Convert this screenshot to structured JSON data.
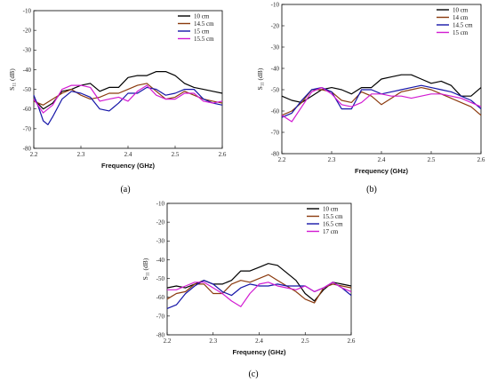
{
  "chart_data": [
    {
      "type": "line",
      "panel_label": "(a)",
      "xlabel": "Frequency (GHz)",
      "ylabel": "S11 (dB)",
      "ylabel_main": "S",
      "ylabel_sub": "11",
      "ylabel_unit": " (dB)",
      "xlim": [
        2.2,
        2.6
      ],
      "ylim": [
        -80,
        -10
      ],
      "xticks": [
        "2.2",
        "2.3",
        "2.4",
        "2.5",
        "2.6"
      ],
      "yticks": [
        "-80",
        "-70",
        "-60",
        "-50",
        "-40",
        "-30",
        "-20",
        "-10"
      ],
      "legend_position": "top-right",
      "series": [
        {
          "name": "10 cm",
          "color": "#000000",
          "x": [
            2.2,
            2.22,
            2.24,
            2.26,
            2.28,
            2.3,
            2.32,
            2.34,
            2.36,
            2.38,
            2.4,
            2.42,
            2.44,
            2.46,
            2.48,
            2.5,
            2.52,
            2.54,
            2.56,
            2.58,
            2.6
          ],
          "y": [
            -55,
            -60,
            -57,
            -51,
            -50,
            -48,
            -47,
            -51,
            -49,
            -49,
            -44,
            -43,
            -43,
            -41,
            -41,
            -43,
            -47,
            -49,
            -50,
            -51,
            -52
          ]
        },
        {
          "name": "14.5 cm",
          "color": "#8B3A0E",
          "x": [
            2.2,
            2.22,
            2.24,
            2.26,
            2.28,
            2.3,
            2.32,
            2.34,
            2.36,
            2.38,
            2.4,
            2.42,
            2.44,
            2.46,
            2.48,
            2.5,
            2.52,
            2.54,
            2.56,
            2.58,
            2.6
          ],
          "y": [
            -56,
            -58,
            -55,
            -52,
            -50,
            -53,
            -55,
            -54,
            -52,
            -52,
            -50,
            -48,
            -47,
            -51,
            -55,
            -54,
            -51,
            -53,
            -55,
            -56,
            -57
          ]
        },
        {
          "name": "15 cm",
          "color": "#1515A8",
          "x": [
            2.2,
            2.21,
            2.22,
            2.23,
            2.24,
            2.26,
            2.28,
            2.3,
            2.32,
            2.34,
            2.36,
            2.38,
            2.4,
            2.42,
            2.44,
            2.46,
            2.48,
            2.5,
            2.52,
            2.54,
            2.56,
            2.58,
            2.6
          ],
          "y": [
            -53,
            -59,
            -66,
            -68,
            -64,
            -55,
            -51,
            -52,
            -54,
            -60,
            -61,
            -57,
            -52,
            -52,
            -49,
            -50,
            -53,
            -52,
            -50,
            -50,
            -55,
            -57,
            -58
          ]
        },
        {
          "name": "15.5 cm",
          "color": "#D21BD2",
          "x": [
            2.2,
            2.22,
            2.24,
            2.26,
            2.28,
            2.3,
            2.32,
            2.34,
            2.36,
            2.38,
            2.4,
            2.42,
            2.44,
            2.46,
            2.48,
            2.5,
            2.52,
            2.54,
            2.56,
            2.58,
            2.6
          ],
          "y": [
            -55,
            -62,
            -58,
            -50,
            -48,
            -48,
            -49,
            -56,
            -55,
            -54,
            -56,
            -51,
            -48,
            -53,
            -55,
            -55,
            -52,
            -52,
            -56,
            -57,
            -56
          ]
        }
      ]
    },
    {
      "type": "line",
      "panel_label": "(b)",
      "xlabel": "Frequency (GHz)",
      "ylabel": "S11 (dB)",
      "ylabel_main": "S",
      "ylabel_sub": "11",
      "ylabel_unit": " (dB)",
      "xlim": [
        2.2,
        2.6
      ],
      "ylim": [
        -80,
        -10
      ],
      "xticks": [
        "2.2",
        "2.3",
        "2.4",
        "2.5",
        "2.6"
      ],
      "yticks": [
        "-80",
        "-70",
        "-60",
        "-50",
        "-40",
        "-30",
        "-20",
        "-10"
      ],
      "legend_position": "top-right",
      "series": [
        {
          "name": "10 cm",
          "color": "#000000",
          "x": [
            2.2,
            2.22,
            2.24,
            2.26,
            2.28,
            2.3,
            2.32,
            2.34,
            2.36,
            2.38,
            2.4,
            2.42,
            2.44,
            2.46,
            2.48,
            2.5,
            2.52,
            2.54,
            2.56,
            2.58,
            2.6
          ],
          "y": [
            -53,
            -55,
            -56,
            -53,
            -50,
            -49,
            -50,
            -52,
            -49,
            -49,
            -45,
            -44,
            -43,
            -43,
            -45,
            -47,
            -46,
            -48,
            -53,
            -53,
            -49
          ]
        },
        {
          "name": "14 cm",
          "color": "#8B3A0E",
          "x": [
            2.2,
            2.22,
            2.24,
            2.26,
            2.28,
            2.3,
            2.32,
            2.34,
            2.36,
            2.38,
            2.4,
            2.42,
            2.44,
            2.46,
            2.48,
            2.5,
            2.52,
            2.54,
            2.56,
            2.58,
            2.6
          ],
          "y": [
            -62,
            -60,
            -56,
            -50,
            -50,
            -51,
            -55,
            -56,
            -51,
            -53,
            -57,
            -54,
            -51,
            -50,
            -49,
            -50,
            -52,
            -54,
            -56,
            -58,
            -62
          ]
        },
        {
          "name": "14.5 cm",
          "color": "#1515A8",
          "x": [
            2.2,
            2.22,
            2.24,
            2.26,
            2.28,
            2.3,
            2.32,
            2.34,
            2.36,
            2.38,
            2.4,
            2.42,
            2.44,
            2.46,
            2.48,
            2.5,
            2.52,
            2.54,
            2.56,
            2.58,
            2.6
          ],
          "y": [
            -63,
            -61,
            -55,
            -50,
            -49,
            -51,
            -59,
            -59,
            -50,
            -50,
            -52,
            -51,
            -50,
            -49,
            -48,
            -49,
            -50,
            -51,
            -53,
            -55,
            -59
          ]
        },
        {
          "name": "15 cm",
          "color": "#D21BD2",
          "x": [
            2.2,
            2.22,
            2.24,
            2.26,
            2.28,
            2.3,
            2.32,
            2.34,
            2.36,
            2.38,
            2.4,
            2.42,
            2.44,
            2.46,
            2.48,
            2.5,
            2.52,
            2.54,
            2.56,
            2.58,
            2.6
          ],
          "y": [
            -62,
            -65,
            -58,
            -51,
            -49,
            -52,
            -57,
            -58,
            -56,
            -52,
            -52,
            -53,
            -53,
            -54,
            -53,
            -52,
            -52,
            -53,
            -54,
            -56,
            -58
          ]
        }
      ]
    },
    {
      "type": "line",
      "panel_label": "(c)",
      "xlabel": "Frequency (GHz)",
      "ylabel": "S11 (dB)",
      "ylabel_main": "S",
      "ylabel_sub": "11",
      "ylabel_unit": " (dB)",
      "xlim": [
        2.2,
        2.6
      ],
      "ylim": [
        -80,
        -10
      ],
      "xticks": [
        "2.2",
        "2.3",
        "2.4",
        "2.5",
        "2.6"
      ],
      "yticks": [
        "-80",
        "-70",
        "-60",
        "-50",
        "-40",
        "-30",
        "-20",
        "-10"
      ],
      "legend_position": "top-right",
      "series": [
        {
          "name": "10 cm",
          "color": "#000000",
          "x": [
            2.2,
            2.22,
            2.24,
            2.26,
            2.28,
            2.3,
            2.32,
            2.34,
            2.36,
            2.38,
            2.4,
            2.42,
            2.44,
            2.46,
            2.48,
            2.5,
            2.52,
            2.54,
            2.56,
            2.58,
            2.6
          ],
          "y": [
            -55,
            -54,
            -55,
            -53,
            -51,
            -53,
            -53,
            -51,
            -46,
            -46,
            -44,
            -42,
            -43,
            -47,
            -51,
            -58,
            -62,
            -56,
            -52,
            -53,
            -54
          ]
        },
        {
          "name": "15.5 cm",
          "color": "#8B3A0E",
          "x": [
            2.2,
            2.22,
            2.24,
            2.26,
            2.28,
            2.3,
            2.32,
            2.34,
            2.36,
            2.38,
            2.4,
            2.42,
            2.44,
            2.46,
            2.48,
            2.5,
            2.52,
            2.54,
            2.56,
            2.58,
            2.6
          ],
          "y": [
            -61,
            -58,
            -57,
            -53,
            -53,
            -58,
            -58,
            -53,
            -51,
            -52,
            -50,
            -48,
            -51,
            -54,
            -57,
            -61,
            -63,
            -55,
            -53,
            -54,
            -55
          ]
        },
        {
          "name": "16.5 cm",
          "color": "#1515A8",
          "x": [
            2.2,
            2.22,
            2.24,
            2.26,
            2.28,
            2.3,
            2.32,
            2.34,
            2.36,
            2.38,
            2.4,
            2.42,
            2.44,
            2.46,
            2.48,
            2.5,
            2.52,
            2.54,
            2.56,
            2.58,
            2.6
          ],
          "y": [
            -66,
            -64,
            -58,
            -54,
            -51,
            -53,
            -57,
            -59,
            -55,
            -53,
            -54,
            -54,
            -53,
            -54,
            -54,
            -54,
            -57,
            -55,
            -52,
            -55,
            -59
          ]
        },
        {
          "name": "17 cm",
          "color": "#D21BD2",
          "x": [
            2.2,
            2.22,
            2.24,
            2.26,
            2.28,
            2.3,
            2.32,
            2.34,
            2.36,
            2.38,
            2.4,
            2.42,
            2.44,
            2.46,
            2.48,
            2.5,
            2.52,
            2.54,
            2.56,
            2.58,
            2.6
          ],
          "y": [
            -56,
            -56,
            -54,
            -52,
            -52,
            -55,
            -58,
            -62,
            -65,
            -58,
            -53,
            -52,
            -54,
            -55,
            -56,
            -54,
            -57,
            -55,
            -52,
            -55,
            -57
          ]
        }
      ]
    }
  ]
}
